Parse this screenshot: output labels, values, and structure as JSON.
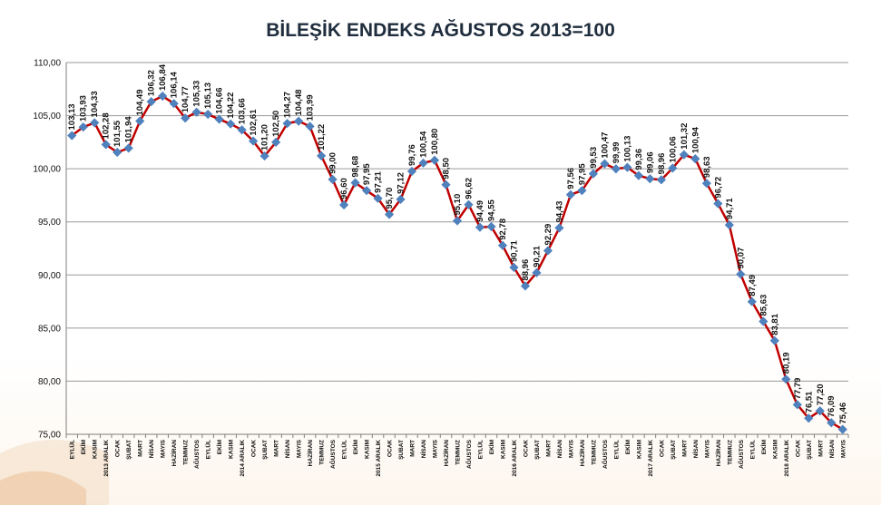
{
  "chart_data": {
    "type": "line",
    "title": "BİLEŞİK ENDEKS AĞUSTOS 2013=100",
    "xlabel": "",
    "ylabel": "",
    "ylim": [
      75,
      110
    ],
    "yticks": [
      "75,00",
      "80,00",
      "85,00",
      "90,00",
      "95,00",
      "100,00",
      "105,00",
      "110,00"
    ],
    "grid": true,
    "legend": "none",
    "colors": {
      "line": "#c00000",
      "marker": "#4f81bd",
      "grid": "#9a9a9a",
      "axis": "#7f7f7f"
    },
    "categories": [
      "EYLÜL",
      "EKİM",
      "KASIM",
      "2013 ARALIK",
      "OCAK",
      "ŞUBAT",
      "MART",
      "NİSAN",
      "MAYIS",
      "HAZİRAN",
      "TEMMUZ",
      "AĞUSTOS",
      "EYLÜL",
      "EKİM",
      "KASIM",
      "2014 ARALIK",
      "OCAK",
      "ŞUBAT",
      "MART",
      "NİSAN",
      "MAYIS",
      "HAZİRAN",
      "TEMMUZ",
      "AĞUSTOS",
      "EYLÜL",
      "EKİM",
      "KASIM",
      "2015 ARALIK",
      "OCAK",
      "ŞUBAT",
      "MART",
      "NİSAN",
      "MAYIS",
      "HAZİRAN",
      "TEMMUZ",
      "AĞUSTOS",
      "EYLÜL",
      "EKİM",
      "KASIM",
      "2016 ARALIK",
      "OCAK",
      "ŞUBAT",
      "MART",
      "NİSAN",
      "MAYIS",
      "HAZİRAN",
      "TEMMUZ",
      "AĞUSTOS",
      "EYLÜL",
      "EKİM",
      "KASIM",
      "2017 ARALIK",
      "OCAK",
      "ŞUBAT",
      "MART",
      "NİSAN",
      "MAYIS",
      "HAZİRAN",
      "TEMMUZ",
      "AĞUSTOS",
      "EYLÜL",
      "EKİM",
      "KASIM",
      "2018 ARALIK",
      "OCAK",
      "ŞUBAT",
      "MART",
      "NİSAN",
      "MAYIS"
    ],
    "values": [
      103.13,
      103.93,
      104.33,
      102.28,
      101.55,
      101.94,
      104.49,
      106.32,
      106.84,
      106.14,
      104.77,
      105.33,
      105.13,
      104.66,
      104.22,
      103.66,
      102.61,
      101.2,
      102.5,
      104.27,
      104.48,
      103.99,
      101.22,
      99.0,
      96.6,
      98.68,
      97.95,
      97.21,
      95.7,
      97.12,
      99.76,
      100.54,
      100.8,
      98.5,
      95.1,
      96.62,
      94.49,
      94.55,
      92.78,
      90.71,
      88.96,
      90.21,
      92.29,
      94.43,
      97.56,
      97.95,
      99.53,
      100.47,
      99.99,
      100.13,
      99.36,
      99.06,
      98.96,
      100.06,
      101.32,
      100.94,
      98.63,
      96.72,
      94.71,
      90.07,
      87.49,
      85.63,
      83.81,
      80.19,
      77.79,
      76.51,
      77.2,
      76.09,
      75.46
    ],
    "labels": [
      "103,13",
      "103,93",
      "104,33",
      "102,28",
      "101,55",
      "101,94",
      "104,49",
      "106,32",
      "106,84",
      "106,14",
      "104,77",
      "105,33",
      "105,13",
      "104,66",
      "104,22",
      "103,66",
      "102,61",
      "101,20",
      "102,50",
      "104,27",
      "104,48",
      "103,99",
      "101,22",
      "99,00",
      "96,60",
      "98,68",
      "97,95",
      "97,21",
      "95,70",
      "97,12",
      "99,76",
      "100,54",
      "100,80",
      "98,50",
      "95,10",
      "96,62",
      "94,49",
      "94,55",
      "92,78",
      "90,71",
      "88,96",
      "90,21",
      "92,29",
      "94,43",
      "97,56",
      "97,95",
      "99,53",
      "100,47",
      "99,99",
      "100,13",
      "99,36",
      "99,06",
      "98,96",
      "100,06",
      "101,32",
      "100,94",
      "98,63",
      "96,72",
      "94,71",
      "90,07",
      "87,49",
      "85,63",
      "83,81",
      "80,19",
      "77,79",
      "76,51",
      "77,20",
      "76,09",
      "75,46"
    ]
  }
}
